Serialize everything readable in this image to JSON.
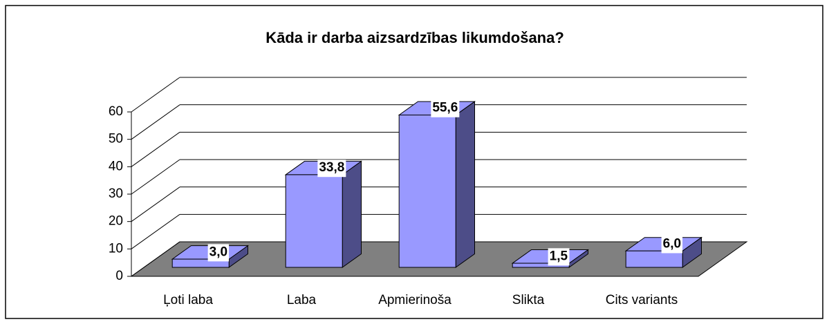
{
  "chart_data": {
    "type": "bar3d",
    "title": "Kāda ir darba aizsardzības likumdošana?",
    "categories": [
      "Ļoti laba",
      "Laba",
      "Apmierinoša",
      "Slikta",
      "Cits variants"
    ],
    "values": [
      3.0,
      33.8,
      55.6,
      1.5,
      6.0
    ],
    "value_labels": [
      "3,0",
      "33,8",
      "55,6",
      "1,5",
      "6,0"
    ],
    "color": "#9999ff",
    "ylim": [
      0,
      60
    ],
    "yticks": [
      0,
      10,
      20,
      30,
      40,
      50,
      60
    ],
    "grid": true
  }
}
